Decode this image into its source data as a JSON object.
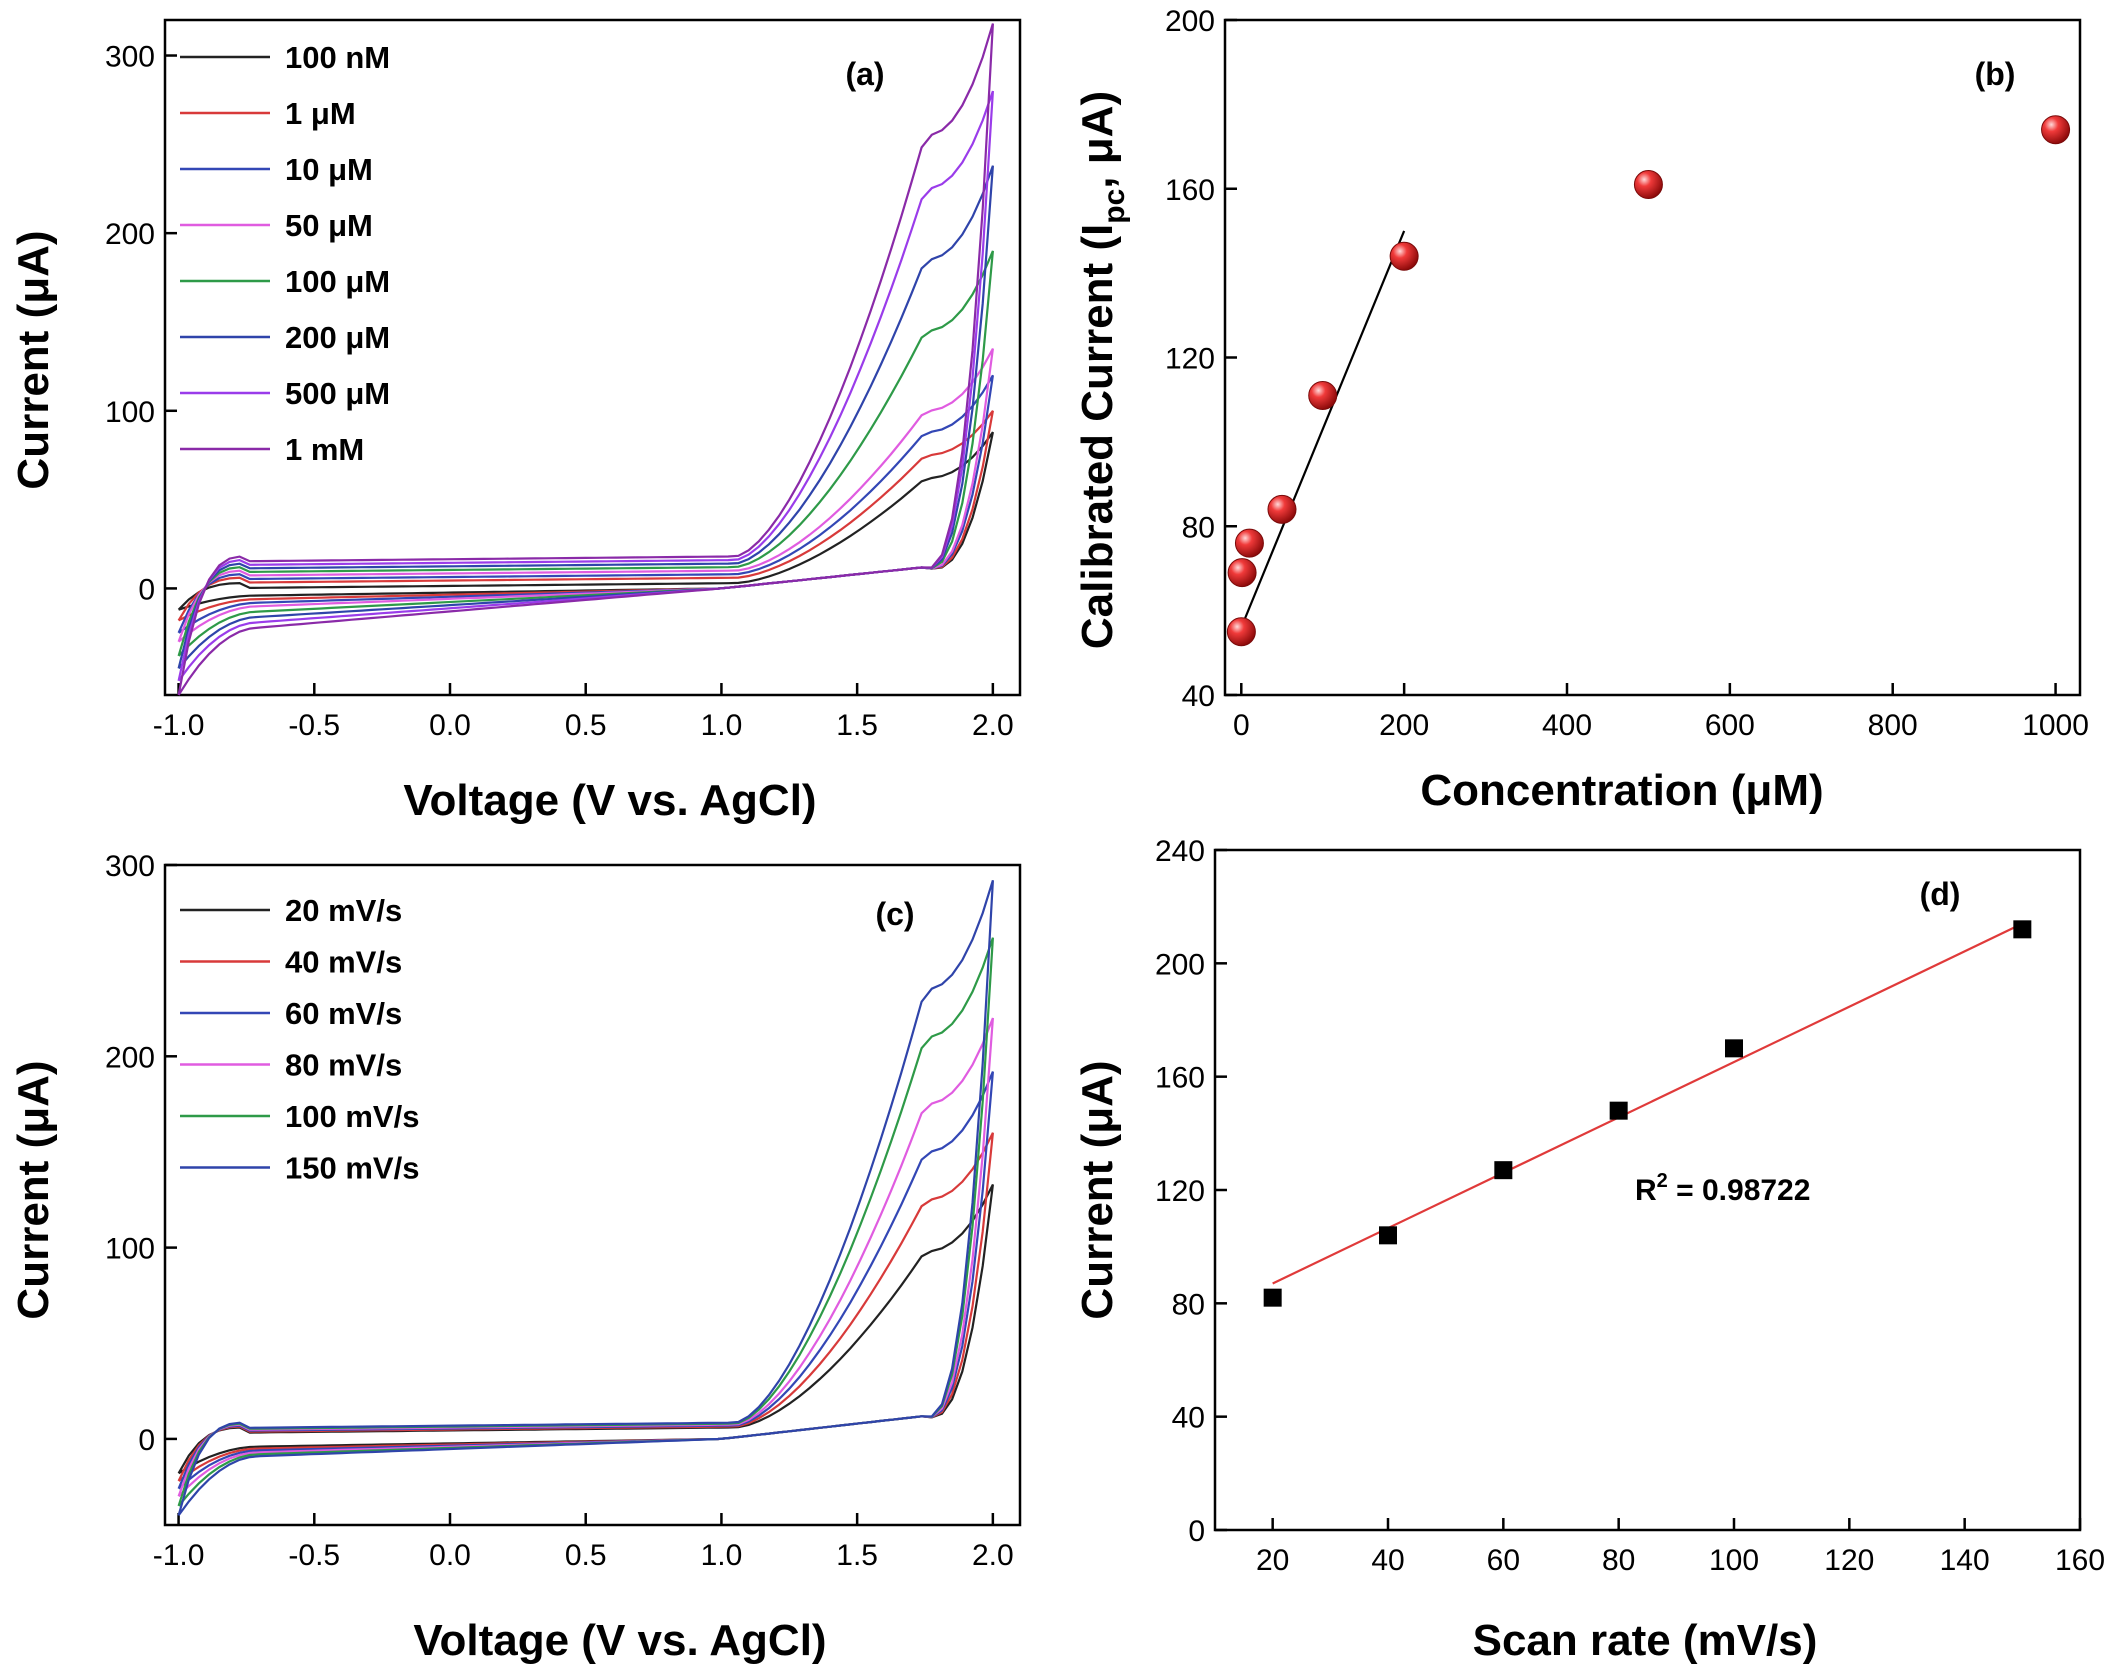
{
  "chart_data": [
    {
      "id": "a",
      "type": "line",
      "panel_label": "(a)",
      "xlabel": "Voltage (V vs. AgCl)",
      "ylabel": "Current (μA)",
      "xlim": [
        -1.05,
        2.1
      ],
      "ylim": [
        -60,
        320
      ],
      "xticks": [
        -1.0,
        -0.5,
        0.0,
        0.5,
        1.0,
        1.5,
        2.0
      ],
      "xtick_labels": [
        "-1.0",
        "-0.5",
        "0.0",
        "0.5",
        "1.0",
        "1.5",
        "2.0"
      ],
      "yticks": [
        0,
        100,
        200,
        300
      ],
      "ytick_labels": [
        "0",
        "100",
        "200",
        "300"
      ],
      "legend_position": "top-left",
      "curve_type": "cyclic voltammogram",
      "series": [
        {
          "name": "100 nM",
          "color": "#222222",
          "peak": 88,
          "hump": 62,
          "plateau": 3,
          "low": -4,
          "start": -12
        },
        {
          "name": "1 μM",
          "color": "#d83a3a",
          "peak": 100,
          "hump": 75,
          "plateau": 6,
          "low": -6,
          "start": -18
        },
        {
          "name": "10 μM",
          "color": "#3347b5",
          "peak": 120,
          "hump": 88,
          "plateau": 8,
          "low": -8,
          "start": -25
        },
        {
          "name": "50 μM",
          "color": "#e05ce0",
          "peak": 135,
          "hump": 100,
          "plateau": 10,
          "low": -10,
          "start": -30
        },
        {
          "name": "100 μM",
          "color": "#2e9a48",
          "peak": 190,
          "hump": 145,
          "plateau": 12,
          "low": -13,
          "start": -38
        },
        {
          "name": "200 μM",
          "color": "#2f44aa",
          "peak": 238,
          "hump": 185,
          "plateau": 14,
          "low": -16,
          "start": -45
        },
        {
          "name": "500 μM",
          "color": "#9a3cea",
          "peak": 280,
          "hump": 225,
          "plateau": 16,
          "low": -19,
          "start": -52
        },
        {
          "name": "1 mM",
          "color": "#8a2aa8",
          "peak": 318,
          "hump": 255,
          "plateau": 18,
          "low": -22,
          "start": -60
        }
      ]
    },
    {
      "id": "b",
      "type": "scatter",
      "panel_label": "(b)",
      "xlabel": "Concentration (μM)",
      "ylabel_main": "Calibrated Current (I",
      "ylabel_sub": "pc",
      "ylabel_tail": ", μA)",
      "xlim": [
        -20,
        1030
      ],
      "ylim": [
        40,
        200
      ],
      "xticks": [
        0,
        200,
        400,
        600,
        800,
        1000
      ],
      "xtick_labels": [
        "0",
        "200",
        "400",
        "600",
        "800",
        "1000"
      ],
      "yticks": [
        40,
        80,
        120,
        160,
        200
      ],
      "ytick_labels": [
        "40",
        "80",
        "120",
        "160",
        "200"
      ],
      "point_color": "#e01616",
      "points": [
        {
          "x": 0.1,
          "y": 55
        },
        {
          "x": 1,
          "y": 69
        },
        {
          "x": 10,
          "y": 76
        },
        {
          "x": 50,
          "y": 84
        },
        {
          "x": 100,
          "y": 111
        },
        {
          "x": 200,
          "y": 144
        },
        {
          "x": 500,
          "y": 161
        },
        {
          "x": 1000,
          "y": 174
        }
      ],
      "fit": {
        "x": [
          0,
          200
        ],
        "y": [
          56,
          150
        ]
      }
    },
    {
      "id": "c",
      "type": "line",
      "panel_label": "(c)",
      "xlabel": "Voltage (V vs. AgCl)",
      "ylabel": "Current (μA)",
      "xlim": [
        -1.05,
        2.1
      ],
      "ylim": [
        -45,
        300
      ],
      "xticks": [
        -1.0,
        -0.5,
        0.0,
        0.5,
        1.0,
        1.5,
        2.0
      ],
      "xtick_labels": [
        "-1.0",
        "-0.5",
        "0.0",
        "0.5",
        "1.0",
        "1.5",
        "2.0"
      ],
      "yticks": [
        0,
        100,
        200,
        300
      ],
      "ytick_labels": [
        "0",
        "100",
        "200",
        "300"
      ],
      "legend_position": "top-left",
      "curve_type": "cyclic voltammogram",
      "series": [
        {
          "name": "20 mV/s",
          "color": "#222222",
          "peak": 133,
          "hump": 98,
          "plateau": 6,
          "low": -4,
          "start": -18
        },
        {
          "name": "40 mV/s",
          "color": "#d83a3a",
          "peak": 160,
          "hump": 125,
          "plateau": 6.5,
          "low": -5,
          "start": -22
        },
        {
          "name": "60 mV/s",
          "color": "#3347b5",
          "peak": 192,
          "hump": 150,
          "plateau": 7,
          "low": -6,
          "start": -26
        },
        {
          "name": "80 mV/s",
          "color": "#e05ce0",
          "peak": 220,
          "hump": 175,
          "plateau": 7.5,
          "low": -7,
          "start": -30
        },
        {
          "name": "100 mV/s",
          "color": "#2e9a48",
          "peak": 262,
          "hump": 210,
          "plateau": 8,
          "low": -8,
          "start": -35
        },
        {
          "name": "150 mV/s",
          "color": "#2f44aa",
          "peak": 292,
          "hump": 235,
          "plateau": 8.5,
          "low": -9,
          "start": -40
        }
      ]
    },
    {
      "id": "d",
      "type": "scatter",
      "panel_label": "(d)",
      "xlabel": "Scan rate (mV/s)",
      "ylabel": "Current (μA)",
      "xlim": [
        10,
        160
      ],
      "ylim": [
        0,
        240
      ],
      "xticks": [
        20,
        40,
        60,
        80,
        100,
        120,
        140,
        160
      ],
      "xtick_labels": [
        "20",
        "40",
        "60",
        "80",
        "100",
        "120",
        "140",
        "160"
      ],
      "yticks": [
        0,
        40,
        80,
        120,
        160,
        200,
        240
      ],
      "ytick_labels": [
        "0",
        "40",
        "80",
        "120",
        "160",
        "200",
        "240"
      ],
      "point_color": "#000000",
      "fit_color": "#e03a3a",
      "points": [
        {
          "x": 20,
          "y": 82
        },
        {
          "x": 40,
          "y": 104
        },
        {
          "x": 60,
          "y": 127
        },
        {
          "x": 80,
          "y": 148
        },
        {
          "x": 100,
          "y": 170
        },
        {
          "x": 150,
          "y": 212
        }
      ],
      "fit": {
        "x": [
          20,
          150
        ],
        "y": [
          87,
          214
        ]
      },
      "annotation_main": "R",
      "annotation_sup": "2",
      "annotation_tail": " = 0.98722"
    }
  ]
}
